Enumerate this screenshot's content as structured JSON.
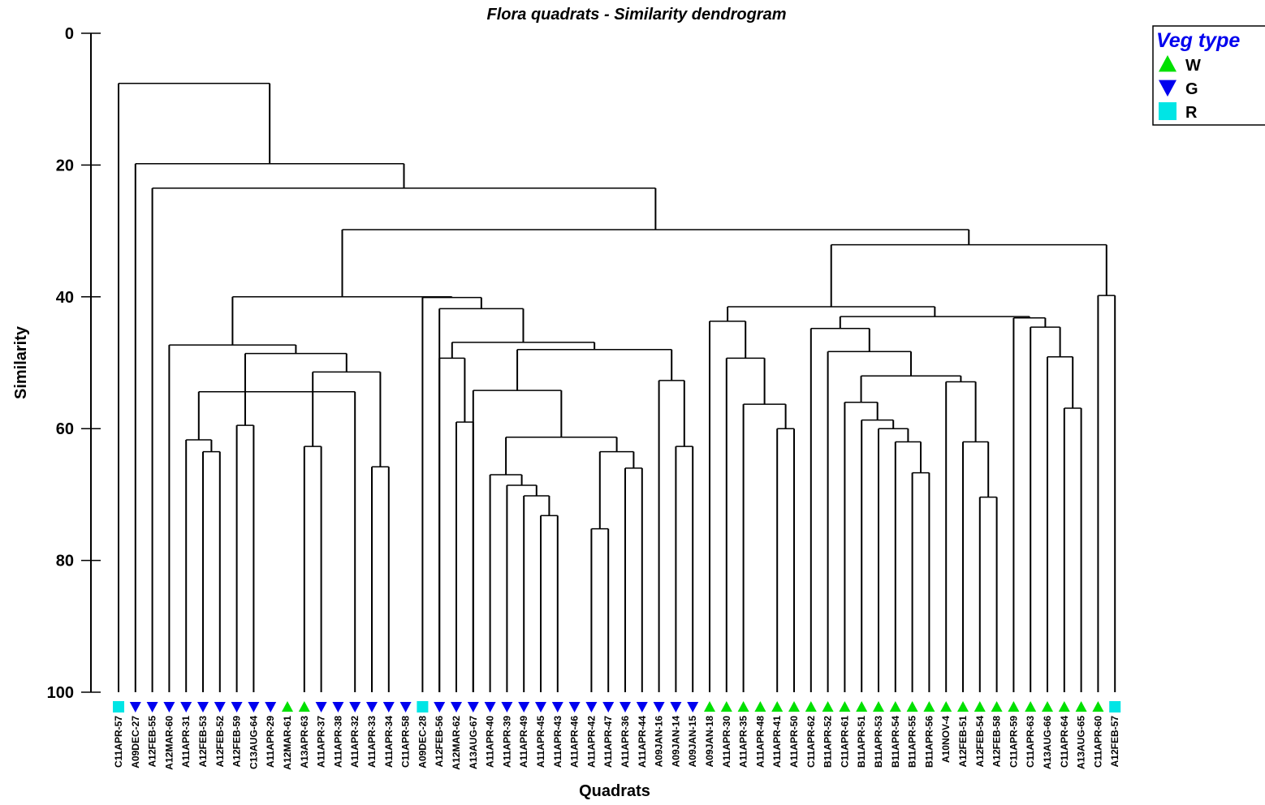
{
  "chart_data": {
    "type": "dendrogram",
    "title": "Flora quadrats - Similarity dendrogram",
    "xlabel": "Quadrats",
    "ylabel": "Similarity",
    "ylim": [
      0,
      100
    ],
    "yticks": [
      0,
      20,
      40,
      60,
      80,
      100
    ],
    "legend": {
      "title": "Veg type",
      "position": "top-right",
      "entries": [
        {
          "label": "W",
          "marker": "triangle-up",
          "color": "#00e000"
        },
        {
          "label": "G",
          "marker": "triangle-down",
          "color": "#0000ee"
        },
        {
          "label": "R",
          "marker": "square",
          "color": "#00e5e5"
        }
      ]
    },
    "leaves": [
      {
        "label": "C11APR-57",
        "type": "R"
      },
      {
        "label": "A09DEC-27",
        "type": "G"
      },
      {
        "label": "A12FEB-55",
        "type": "G"
      },
      {
        "label": "A12MAR-60",
        "type": "G"
      },
      {
        "label": "A11APR-31",
        "type": "G"
      },
      {
        "label": "A12FEB-53",
        "type": "G"
      },
      {
        "label": "A12FEB-52",
        "type": "G"
      },
      {
        "label": "A12FEB-59",
        "type": "G"
      },
      {
        "label": "C13AUG-64",
        "type": "G"
      },
      {
        "label": "A11APR-29",
        "type": "G"
      },
      {
        "label": "A12MAR-61",
        "type": "W"
      },
      {
        "label": "A13APR-63",
        "type": "W"
      },
      {
        "label": "A11APR-37",
        "type": "G"
      },
      {
        "label": "A11APR-38",
        "type": "G"
      },
      {
        "label": "A11APR-32",
        "type": "G"
      },
      {
        "label": "A11APR-33",
        "type": "G"
      },
      {
        "label": "A11APR-34",
        "type": "G"
      },
      {
        "label": "C11APR-58",
        "type": "G"
      },
      {
        "label": "A09DEC-28",
        "type": "R"
      },
      {
        "label": "A12FEB-56",
        "type": "G"
      },
      {
        "label": "A12MAR-62",
        "type": "G"
      },
      {
        "label": "A13AUG-67",
        "type": "G"
      },
      {
        "label": "A11APR-40",
        "type": "G"
      },
      {
        "label": "A11APR-39",
        "type": "G"
      },
      {
        "label": "A11APR-49",
        "type": "G"
      },
      {
        "label": "A11APR-45",
        "type": "G"
      },
      {
        "label": "A11APR-43",
        "type": "G"
      },
      {
        "label": "A11APR-46",
        "type": "G"
      },
      {
        "label": "A11APR-42",
        "type": "G"
      },
      {
        "label": "A11APR-47",
        "type": "G"
      },
      {
        "label": "A11APR-36",
        "type": "G"
      },
      {
        "label": "A11APR-44",
        "type": "G"
      },
      {
        "label": "A09JAN-16",
        "type": "G"
      },
      {
        "label": "A09JAN-14",
        "type": "G"
      },
      {
        "label": "A09JAN-15",
        "type": "G"
      },
      {
        "label": "A09JAN-18",
        "type": "W"
      },
      {
        "label": "A11APR-30",
        "type": "W"
      },
      {
        "label": "A11APR-35",
        "type": "W"
      },
      {
        "label": "A11APR-48",
        "type": "W"
      },
      {
        "label": "A11APR-41",
        "type": "W"
      },
      {
        "label": "A11APR-50",
        "type": "W"
      },
      {
        "label": "C11APR-62",
        "type": "W"
      },
      {
        "label": "B11APR-52",
        "type": "W"
      },
      {
        "label": "C11APR-61",
        "type": "W"
      },
      {
        "label": "B11APR-51",
        "type": "W"
      },
      {
        "label": "B11APR-53",
        "type": "W"
      },
      {
        "label": "B11APR-54",
        "type": "W"
      },
      {
        "label": "B11APR-55",
        "type": "W"
      },
      {
        "label": "B11APR-56",
        "type": "W"
      },
      {
        "label": "A10NOV-4",
        "type": "W"
      },
      {
        "label": "A12FEB-51",
        "type": "W"
      },
      {
        "label": "A12FEB-54",
        "type": "W"
      },
      {
        "label": "A12FEB-58",
        "type": "W"
      },
      {
        "label": "C11APR-59",
        "type": "W"
      },
      {
        "label": "C11APR-63",
        "type": "W"
      },
      {
        "label": "A13AUG-66",
        "type": "W"
      },
      {
        "label": "C11APR-64",
        "type": "W"
      },
      {
        "label": "A13AUG-65",
        "type": "W"
      },
      {
        "label": "C11APR-60",
        "type": "W"
      },
      {
        "label": "A12FEB-57",
        "type": "R"
      }
    ],
    "merges": [
      {
        "left": 5,
        "right": 6,
        "height": 63.5
      },
      {
        "left": 7,
        "right": 8,
        "height": 59.5
      },
      {
        "left": 11,
        "right": 12,
        "height": 62.7
      },
      {
        "left": 15,
        "right": 16,
        "height": 65.8
      },
      {
        "left": 4,
        "right": 60,
        "height": 61.7
      },
      {
        "left": 14,
        "right": 64,
        "height": 54.4
      },
      {
        "left": 63,
        "right": 62,
        "height": 51.4
      },
      {
        "left": 61,
        "right": 66,
        "height": 48.6
      },
      {
        "left": 3,
        "right": 67,
        "height": 47.3
      },
      {
        "left": 21,
        "right": 20,
        "height": 59.0
      },
      {
        "left": 19,
        "right": 69,
        "height": 49.3
      },
      {
        "left": 28,
        "right": 29,
        "height": 75.2
      },
      {
        "left": 25,
        "right": 26,
        "height": 73.2
      },
      {
        "left": 24,
        "right": 72,
        "height": 70.2
      },
      {
        "left": 23,
        "right": 73,
        "height": 68.6
      },
      {
        "left": 22,
        "right": 74,
        "height": 67.0
      },
      {
        "left": 30,
        "right": 31,
        "height": 66.0
      },
      {
        "left": 71,
        "right": 76,
        "height": 63.5
      },
      {
        "left": 75,
        "right": 77,
        "height": 61.3
      },
      {
        "left": 21,
        "right": 78,
        "height": 54.2
      },
      {
        "left": 33,
        "right": 34,
        "height": 62.7
      },
      {
        "left": 32,
        "right": 80,
        "height": 52.7
      },
      {
        "left": 79,
        "right": 81,
        "height": 48.0
      },
      {
        "left": 70,
        "right": 82,
        "height": 46.9
      },
      {
        "left": 19,
        "right": 83,
        "height": 41.8
      },
      {
        "left": 18,
        "right": 84,
        "height": 40.1
      },
      {
        "left": 68,
        "right": 85,
        "height": 40.0
      },
      {
        "left": 39,
        "right": 40,
        "height": 60.0
      },
      {
        "left": 37,
        "right": 87,
        "height": 56.3
      },
      {
        "left": 36,
        "right": 88,
        "height": 49.3
      },
      {
        "left": 35,
        "right": 89,
        "height": 43.7
      },
      {
        "left": 47,
        "right": 48,
        "height": 66.7
      },
      {
        "left": 46,
        "right": 91,
        "height": 62.0
      },
      {
        "left": 45,
        "right": 92,
        "height": 60.0
      },
      {
        "left": 44,
        "right": 93,
        "height": 58.7
      },
      {
        "left": 43,
        "right": 94,
        "height": 56.0
      },
      {
        "left": 51,
        "right": 52,
        "height": 70.4
      },
      {
        "left": 50,
        "right": 96,
        "height": 62.0
      },
      {
        "left": 49,
        "right": 97,
        "height": 52.9
      },
      {
        "left": 98,
        "right": 95,
        "height": 52.0
      },
      {
        "left": 42,
        "right": 99,
        "height": 48.3
      },
      {
        "left": 41,
        "right": 100,
        "height": 44.8
      },
      {
        "left": 56,
        "right": 57,
        "height": 56.9
      },
      {
        "left": 55,
        "right": 102,
        "height": 49.1
      },
      {
        "left": 54,
        "right": 103,
        "height": 44.6
      },
      {
        "left": 53,
        "right": 104,
        "height": 43.2
      },
      {
        "left": 101,
        "right": 105,
        "height": 43.0
      },
      {
        "left": 90,
        "right": 106,
        "height": 41.5
      },
      {
        "left": 58,
        "right": 59,
        "height": 39.8
      },
      {
        "left": 107,
        "right": 108,
        "height": 32.1
      },
      {
        "left": 86,
        "right": 109,
        "height": 29.8
      },
      {
        "left": 2,
        "right": 110,
        "height": 23.5
      },
      {
        "left": 1,
        "right": 111,
        "height": 19.8
      },
      {
        "left": 0,
        "right": 112,
        "height": 7.6
      }
    ]
  }
}
